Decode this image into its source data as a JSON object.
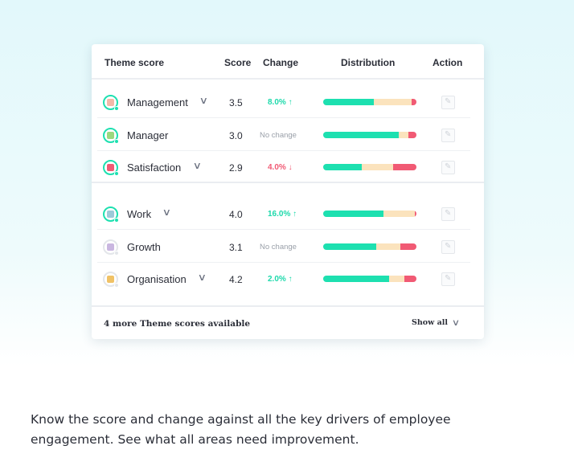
{
  "table": {
    "headers": {
      "theme": "Theme score",
      "score": "Score",
      "change": "Change",
      "distribution": "Distribution",
      "action": "Action"
    },
    "rows": [
      {
        "name": "Management",
        "score": "3.5",
        "change": "8.0% ↑",
        "direction": "up",
        "expandable": true,
        "icon": "management-icon",
        "distribution": {
          "positive": 0.54,
          "neutral": 0.41,
          "negative": 0.05
        }
      },
      {
        "name": "Manager",
        "score": "3.0",
        "change": "No change",
        "direction": "none",
        "expandable": false,
        "icon": "manager-icon",
        "distribution": {
          "positive": 0.81,
          "neutral": 0.1,
          "negative": 0.09
        }
      },
      {
        "name": "Satisfaction",
        "score": "2.9",
        "change": "4.0% ↓",
        "direction": "down",
        "expandable": true,
        "icon": "satisfaction-icon",
        "distribution": {
          "positive": 0.41,
          "neutral": 0.34,
          "negative": 0.25
        }
      },
      {
        "name": "Work",
        "score": "4.0",
        "change": "16.0% ↑",
        "direction": "up",
        "expandable": true,
        "icon": "work-icon",
        "distribution": {
          "positive": 0.65,
          "neutral": 0.33,
          "negative": 0.02
        }
      },
      {
        "name": "Growth",
        "score": "3.1",
        "change": "No change",
        "direction": "none",
        "expandable": false,
        "icon": "growth-icon",
        "distribution": {
          "positive": 0.57,
          "neutral": 0.26,
          "negative": 0.17
        }
      },
      {
        "name": "Organisation",
        "score": "4.2",
        "change": "2.0% ↑",
        "direction": "up",
        "expandable": true,
        "icon": "organisation-icon",
        "distribution": {
          "positive": 0.71,
          "neutral": 0.16,
          "negative": 0.13
        }
      }
    ]
  },
  "footer": {
    "more_text": "4 more Theme scores available",
    "show_all": "Show all"
  },
  "caption": {
    "line1": "Know the score and change against all the key drivers of employee",
    "line2": "engagement. See what all areas need improvement."
  },
  "colors": {
    "positive": "#1de0b0",
    "neutral": "#fbe3bd",
    "negative": "#f15a74",
    "up": "#1dd9ab",
    "down": "#f15a74"
  }
}
